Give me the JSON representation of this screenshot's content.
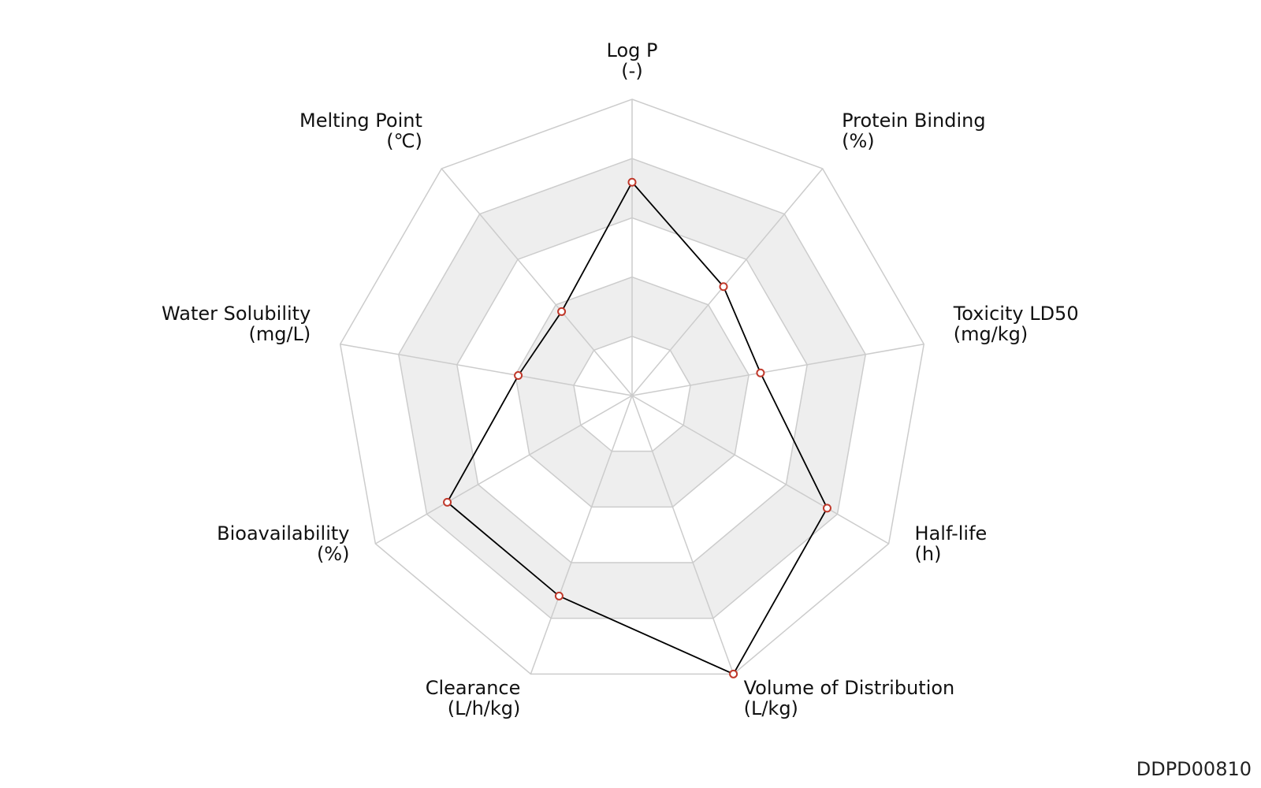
{
  "chart_data": {
    "type": "radar",
    "title": "",
    "axes": [
      {
        "name": "Log P",
        "unit": "(-)",
        "value": 0.72
      },
      {
        "name": "Protein Binding",
        "unit": "(%)",
        "value": 0.48
      },
      {
        "name": "Toxicity LD50",
        "unit": "(mg/kg)",
        "value": 0.44
      },
      {
        "name": "Half-life",
        "unit": "(h)",
        "value": 0.76
      },
      {
        "name": "Volume of Distribution",
        "unit": "(L/kg)",
        "value": 1.0
      },
      {
        "name": "Clearance",
        "unit": "(L/h/kg)",
        "value": 0.72
      },
      {
        "name": "Bioavailability",
        "unit": "(%)",
        "value": 0.72
      },
      {
        "name": "Water Solubility",
        "unit": "(mg/L)",
        "value": 0.39
      },
      {
        "name": "Melting Point",
        "unit": "(℃)",
        "value": 0.37
      }
    ],
    "range": [
      0,
      1
    ],
    "rings": 5,
    "grid": true,
    "colors": {
      "line": "#000000",
      "marker_edge": "#c0392b",
      "marker_fill": "#ffffff",
      "grid_line": "#cccccc",
      "band_fill": "#eeeeee"
    }
  },
  "watermark": "DDPD00810"
}
